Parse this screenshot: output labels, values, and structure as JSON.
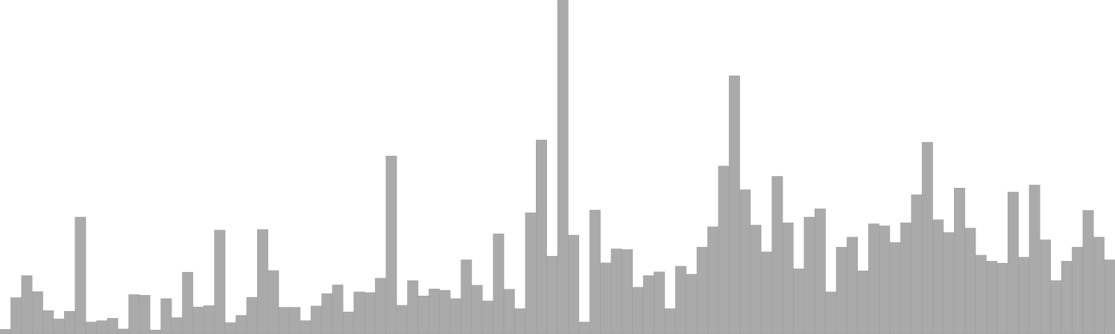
{
  "colors": {
    "bar_fill": "#aaaaaa",
    "bar_stroke": "#9a9a9a",
    "background": "#ffffff"
  },
  "chart_data": {
    "type": "bar",
    "title": "",
    "xlabel": "",
    "ylabel": "",
    "axes_visible": false,
    "grid": false,
    "legend": "none",
    "ylim": [
      0,
      100
    ],
    "values": [
      1.4,
      10.9,
      17.5,
      12.7,
      7.0,
      4.5,
      6.8,
      35.0,
      3.6,
      4.0,
      4.7,
      1.5,
      11.8,
      11.6,
      1.2,
      10.6,
      4.9,
      18.5,
      8.1,
      8.5,
      31.1,
      3.4,
      5.6,
      11.0,
      31.3,
      19.0,
      8.0,
      8.0,
      4.0,
      8.4,
      12.1,
      14.7,
      6.6,
      12.6,
      12.4,
      16.7,
      53.3,
      8.6,
      16.0,
      11.4,
      13.5,
      13.1,
      10.6,
      22.2,
      14.6,
      9.9,
      30.0,
      13.4,
      7.6,
      36.3,
      58.1,
      23.3,
      100,
      29.6,
      3.6,
      37.1,
      21.3,
      25.5,
      25.3,
      14.0,
      17.5,
      18.6,
      7.6,
      20.3,
      17.9,
      26.0,
      32.1,
      50.3,
      77.3,
      43.2,
      32.6,
      24.6,
      47.2,
      33.3,
      19.5,
      35.0,
      37.5,
      12.6,
      26.0,
      29.0,
      18.9,
      33.0,
      32.4,
      27.4,
      33.3,
      41.7,
      57.4,
      34.2,
      30.4,
      43.7,
      31.7,
      23.6,
      21.8,
      21.2,
      42.5,
      23.0,
      44.6,
      28.2,
      16.0,
      21.8,
      26.0,
      37.0,
      29.0,
      22.2
    ]
  }
}
